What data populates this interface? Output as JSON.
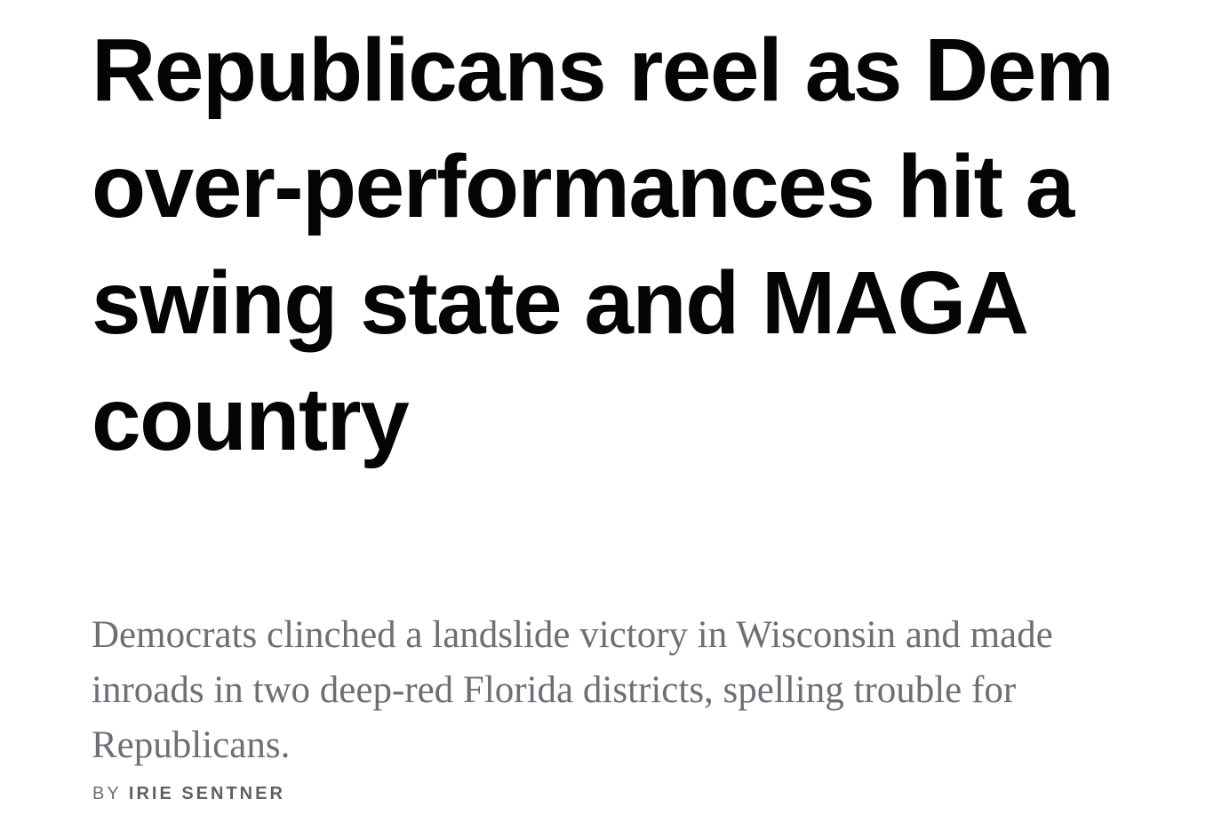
{
  "headline": "Republicans reel as Dem over-performances hit a swing state and MAGA country",
  "dek": "Democrats clinched a landslide victory in Wisconsin and made inroads in two deep-red Florida districts, spelling trouble for Republicans.",
  "byline": {
    "prefix": "BY",
    "author": "IRIE SENTNER"
  }
}
